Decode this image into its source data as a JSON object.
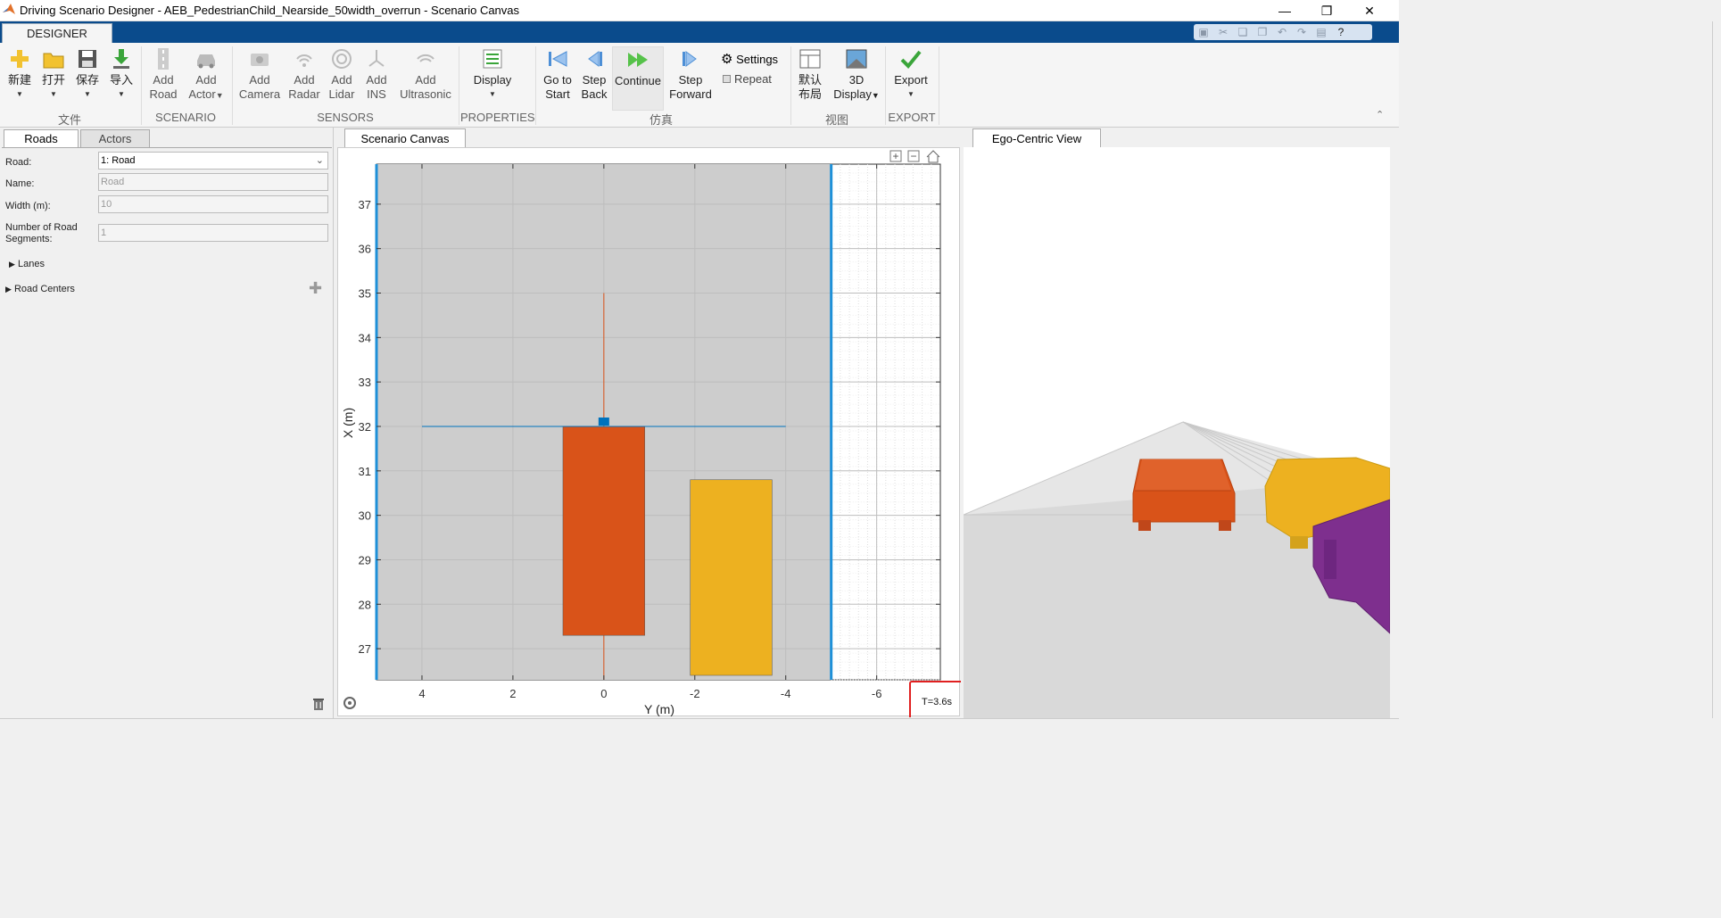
{
  "window": {
    "title": "Driving Scenario Designer - AEB_PedestrianChild_Nearside_50width_overrun - Scenario Canvas",
    "controls": [
      "—",
      "❐",
      "✕"
    ]
  },
  "tabs": {
    "designer": "DESIGNER"
  },
  "ribbon": {
    "file": {
      "new": "新建",
      "open": "打开",
      "save": "保存",
      "import": "导入",
      "section": "文件"
    },
    "scenario": {
      "add_road_1": "Add",
      "add_road_2": "Road",
      "add_actor_1": "Add",
      "add_actor_2": "Actor",
      "section": "SCENARIO"
    },
    "sensors": {
      "camera_1": "Add",
      "camera_2": "Camera",
      "radar_1": "Add",
      "radar_2": "Radar",
      "lidar_1": "Add",
      "lidar_2": "Lidar",
      "ins_1": "Add",
      "ins_2": "INS",
      "ultra_1": "Add",
      "ultra_2": "Ultrasonic",
      "section": "SENSORS"
    },
    "properties": {
      "display": "Display",
      "section": "PROPERTIES"
    },
    "simulation": {
      "go_start_1": "Go to",
      "go_start_2": "Start",
      "step_back_1": "Step",
      "step_back_2": "Back",
      "continue": "Continue",
      "step_fwd_1": "Step",
      "step_fwd_2": "Forward",
      "settings": "Settings",
      "repeat": "Repeat",
      "section": "仿真"
    },
    "view": {
      "default_1": "默认",
      "default_2": "布局",
      "display3d_1": "3D",
      "display3d_2": "Display",
      "section": "视图"
    },
    "export": {
      "label": "Export",
      "section": "EXPORT"
    }
  },
  "left_panel": {
    "tabs": [
      "Roads",
      "Actors"
    ],
    "road_label": "Road:",
    "road_value": "1: Road",
    "name_label": "Name:",
    "name_value": "Road",
    "width_label": "Width (m):",
    "width_value": "10",
    "segments_label_1": "Number of Road",
    "segments_label_2": "Segments:",
    "segments_value": "1",
    "lanes": "Lanes",
    "road_centers": "Road Centers"
  },
  "canvas": {
    "tab": "Scenario Canvas",
    "xlabel": "Y (m)",
    "ylabel": "X (m)",
    "time": "T=3.6s"
  },
  "ego_view": {
    "tab": "Ego-Centric View"
  },
  "chart_data": {
    "type": "scatter",
    "xlabel": "Y (m)",
    "ylabel": "X (m)",
    "xlim": [
      5,
      -7.4
    ],
    "ylim": [
      26.3,
      37.9
    ],
    "x_ticks": [
      4,
      2,
      0,
      -2,
      -4,
      -6
    ],
    "y_ticks": [
      27,
      28,
      29,
      30,
      31,
      32,
      33,
      34,
      35,
      36,
      37
    ],
    "road": {
      "y_left": 5,
      "y_right": -5
    },
    "actors": [
      {
        "name": "ego-vehicle",
        "color": "#d95319",
        "y_min": -0.9,
        "y_max": 0.9,
        "x_min": 27.3,
        "x_max": 32.0
      },
      {
        "name": "target-vehicle",
        "color": "#edb120",
        "y_min": -1.9,
        "y_max": -3.7,
        "x_min": 26.4,
        "x_max": 30.8
      }
    ],
    "waypoint_line": {
      "x": 32.0,
      "y_from": 4.0,
      "y_to": -4.0,
      "color": "#0072bd"
    },
    "heading_line": {
      "y": 0,
      "x_from": 26.3,
      "x_to": 35.0,
      "color": "#d95319"
    },
    "marker": {
      "y": 0,
      "x": 32.1,
      "color": "#0072bd"
    }
  }
}
